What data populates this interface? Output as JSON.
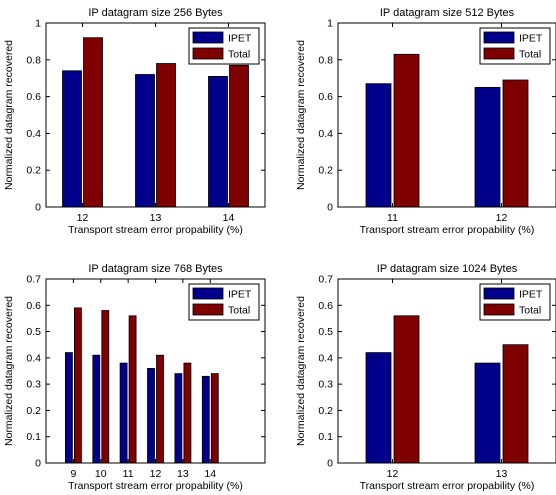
{
  "colors": {
    "IPET": "#00008b",
    "Total": "#7f0000"
  },
  "chart_data": [
    {
      "type": "bar",
      "title": "IP datagram size 256 Bytes",
      "xlabel": "Transport stream error propability (%)",
      "ylabel": "Normalized datagram recovered",
      "categories": [
        "12",
        "13",
        "14"
      ],
      "series": [
        {
          "name": "IPET",
          "values": [
            0.74,
            0.72,
            0.71
          ]
        },
        {
          "name": "Total",
          "values": [
            0.92,
            0.78,
            0.77
          ]
        }
      ],
      "ylim": [
        0,
        1
      ],
      "yticks": [
        "0",
        "0.2",
        "0.4",
        "0.6",
        "0.8",
        "1"
      ],
      "legend": "top-right",
      "grid": false
    },
    {
      "type": "bar",
      "title": "IP datagram size 512 Bytes",
      "xlabel": "Transport stream error propability (%)",
      "ylabel": "Normalized datagram recovered",
      "categories": [
        "11",
        "12"
      ],
      "series": [
        {
          "name": "IPET",
          "values": [
            0.67,
            0.65
          ]
        },
        {
          "name": "Total",
          "values": [
            0.83,
            0.69
          ]
        }
      ],
      "ylim": [
        0,
        1
      ],
      "yticks": [
        "0",
        "0.2",
        "0.4",
        "0.6",
        "0.8",
        "1"
      ],
      "legend": "top-right",
      "grid": false
    },
    {
      "type": "bar",
      "title": "IP datagram size 768 Bytes",
      "xlabel": "Transport stream error propability (%)",
      "ylabel": "Normalized datagram recovered",
      "categories": [
        "9",
        "10",
        "11",
        "12",
        "13",
        "14"
      ],
      "series": [
        {
          "name": "IPET",
          "values": [
            0.42,
            0.41,
            0.38,
            0.36,
            0.34,
            0.33
          ]
        },
        {
          "name": "Total",
          "values": [
            0.59,
            0.58,
            0.56,
            0.41,
            0.38,
            0.34
          ]
        }
      ],
      "xlim": [
        8,
        16
      ],
      "ylim": [
        0,
        0.7
      ],
      "yticks": [
        "0",
        "0.1",
        "0.2",
        "0.3",
        "0.4",
        "0.5",
        "0.6",
        "0.7"
      ],
      "legend": "top-right",
      "grid": false
    },
    {
      "type": "bar",
      "title": "IP datagram size 1024 Bytes",
      "xlabel": "Transport stream error propability (%)",
      "ylabel": "Normalized datagram recovered",
      "categories": [
        "12",
        "13"
      ],
      "series": [
        {
          "name": "IPET",
          "values": [
            0.42,
            0.38
          ]
        },
        {
          "name": "Total",
          "values": [
            0.56,
            0.45
          ]
        }
      ],
      "ylim": [
        0,
        0.7
      ],
      "yticks": [
        "0",
        "0.1",
        "0.2",
        "0.3",
        "0.4",
        "0.5",
        "0.6",
        "0.7"
      ],
      "legend": "top-right",
      "grid": false
    }
  ]
}
